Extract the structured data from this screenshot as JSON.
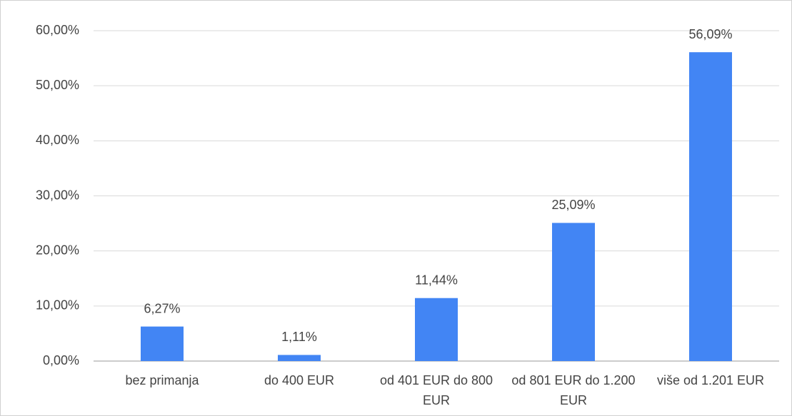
{
  "chart_data": {
    "type": "bar",
    "categories": [
      "bez primanja",
      "do 400 EUR",
      "od 401 EUR do 800 EUR",
      "od 801 EUR do 1.200 EUR",
      "više od 1.201 EUR"
    ],
    "values": [
      6.27,
      1.11,
      11.44,
      25.09,
      56.09
    ],
    "value_labels": [
      "6,27%",
      "1,11%",
      "11,44%",
      "25,09%",
      "56,09%"
    ],
    "color": "#4285f4",
    "ylim": [
      0,
      60
    ],
    "yticks": [
      {
        "value": 0,
        "label": "0,00%"
      },
      {
        "value": 10,
        "label": "10,00%"
      },
      {
        "value": 20,
        "label": "20,00%"
      },
      {
        "value": 30,
        "label": "30,00%"
      },
      {
        "value": 40,
        "label": "40,00%"
      },
      {
        "value": 50,
        "label": "50,00%"
      },
      {
        "value": 60,
        "label": "60,00%"
      }
    ],
    "grid": true
  }
}
